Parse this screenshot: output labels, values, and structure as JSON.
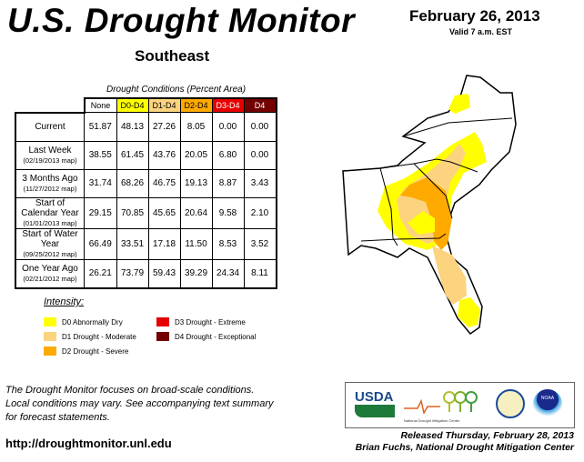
{
  "header": {
    "title": "U.S. Drought Monitor",
    "region": "Southeast",
    "date": "February 26, 2013",
    "valid": "Valid 7 a.m. EST"
  },
  "table": {
    "caption": "Drought Conditions (Percent Area)",
    "columns": [
      "None",
      "D0-D4",
      "D1-D4",
      "D2-D4",
      "D3-D4",
      "D4"
    ],
    "column_colors": [
      "#ffffff",
      "#ffff00",
      "#fcd37f",
      "#ffaa00",
      "#e60000",
      "#730000"
    ],
    "rows": [
      {
        "label": "Current",
        "sub": "",
        "values": [
          "51.87",
          "48.13",
          "27.26",
          "8.05",
          "0.00",
          "0.00"
        ]
      },
      {
        "label": "Last Week",
        "sub": "(02/19/2013 map)",
        "values": [
          "38.55",
          "61.45",
          "43.76",
          "20.05",
          "6.80",
          "0.00"
        ]
      },
      {
        "label": "3 Months Ago",
        "sub": "(11/27/2012 map)",
        "values": [
          "31.74",
          "68.26",
          "46.75",
          "19.13",
          "8.87",
          "3.43"
        ]
      },
      {
        "label": "Start of Calendar Year",
        "sub": "(01/01/2013 map)",
        "values": [
          "29.15",
          "70.85",
          "45.65",
          "20.64",
          "9.58",
          "2.10"
        ]
      },
      {
        "label": "Start of Water Year",
        "sub": "(09/25/2012 map)",
        "values": [
          "66.49",
          "33.51",
          "17.18",
          "11.50",
          "8.53",
          "3.52"
        ]
      },
      {
        "label": "One Year Ago",
        "sub": "(02/21/2012 map)",
        "values": [
          "26.21",
          "73.79",
          "59.43",
          "39.29",
          "24.34",
          "8.11"
        ]
      }
    ]
  },
  "legend": {
    "title": "Intensity:",
    "items": [
      {
        "label": "D0 Abnormally Dry",
        "color": "#ffff00"
      },
      {
        "label": "D1 Drought - Moderate",
        "color": "#fcd37f"
      },
      {
        "label": "D2 Drought - Severe",
        "color": "#ffaa00"
      },
      {
        "label": "D3 Drought - Extreme",
        "color": "#e60000"
      },
      {
        "label": "D4 Drought - Exceptional",
        "color": "#730000"
      }
    ]
  },
  "note": [
    "The Drought Monitor focuses on broad-scale conditions.",
    "Local conditions may vary. See accompanying text summary",
    "for forecast statements."
  ],
  "url": "http://droughtmonitor.unl.edu",
  "logos": {
    "usda": "USDA",
    "ndmc": "National Drought Mitigation Center",
    "noaa": "NOAA"
  },
  "release": {
    "line1": "Released Thursday, February 28, 2013",
    "line2": "Brian Fuchs, National Drought Mitigation Center"
  }
}
